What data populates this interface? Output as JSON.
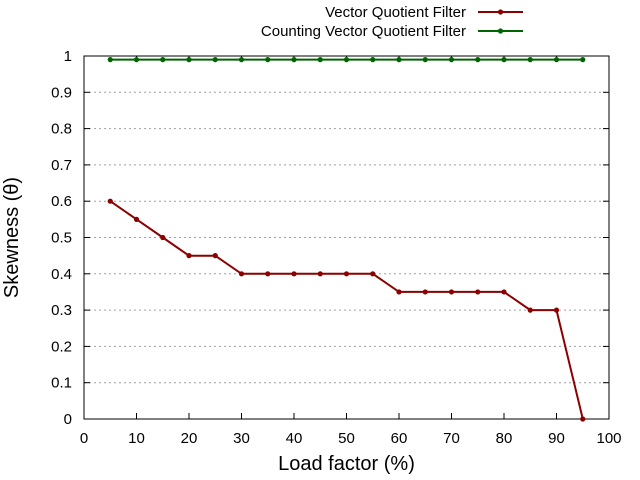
{
  "chart_data": {
    "type": "line",
    "xlabel": "Load factor (%)",
    "ylabel": "Skewness (θ)",
    "xlim": [
      0,
      100
    ],
    "ylim": [
      0,
      1
    ],
    "xticks": [
      0,
      10,
      20,
      30,
      40,
      50,
      60,
      70,
      80,
      90,
      100
    ],
    "yticks": [
      0,
      0.1,
      0.2,
      0.3,
      0.4,
      0.5,
      0.6,
      0.7,
      0.8,
      0.9,
      1
    ],
    "grid": "horizontal",
    "legend_position": "top-right-outside",
    "series": [
      {
        "name": "Vector Quotient Filter",
        "color": "#8b0000",
        "x": [
          5,
          10,
          15,
          20,
          25,
          30,
          35,
          40,
          45,
          50,
          55,
          60,
          65,
          70,
          75,
          80,
          85,
          90,
          95
        ],
        "y": [
          0.6,
          0.55,
          0.5,
          0.45,
          0.45,
          0.4,
          0.4,
          0.4,
          0.4,
          0.4,
          0.4,
          0.35,
          0.35,
          0.35,
          0.35,
          0.35,
          0.3,
          0.3,
          0
        ]
      },
      {
        "name": "Counting Vector Quotient Filter",
        "color": "#006400",
        "x": [
          5,
          10,
          15,
          20,
          25,
          30,
          35,
          40,
          45,
          50,
          55,
          60,
          65,
          70,
          75,
          80,
          85,
          90,
          95
        ],
        "y": [
          0.99,
          0.99,
          0.99,
          0.99,
          0.99,
          0.99,
          0.99,
          0.99,
          0.99,
          0.99,
          0.99,
          0.99,
          0.99,
          0.99,
          0.99,
          0.99,
          0.99,
          0.99,
          0.99
        ]
      }
    ]
  }
}
